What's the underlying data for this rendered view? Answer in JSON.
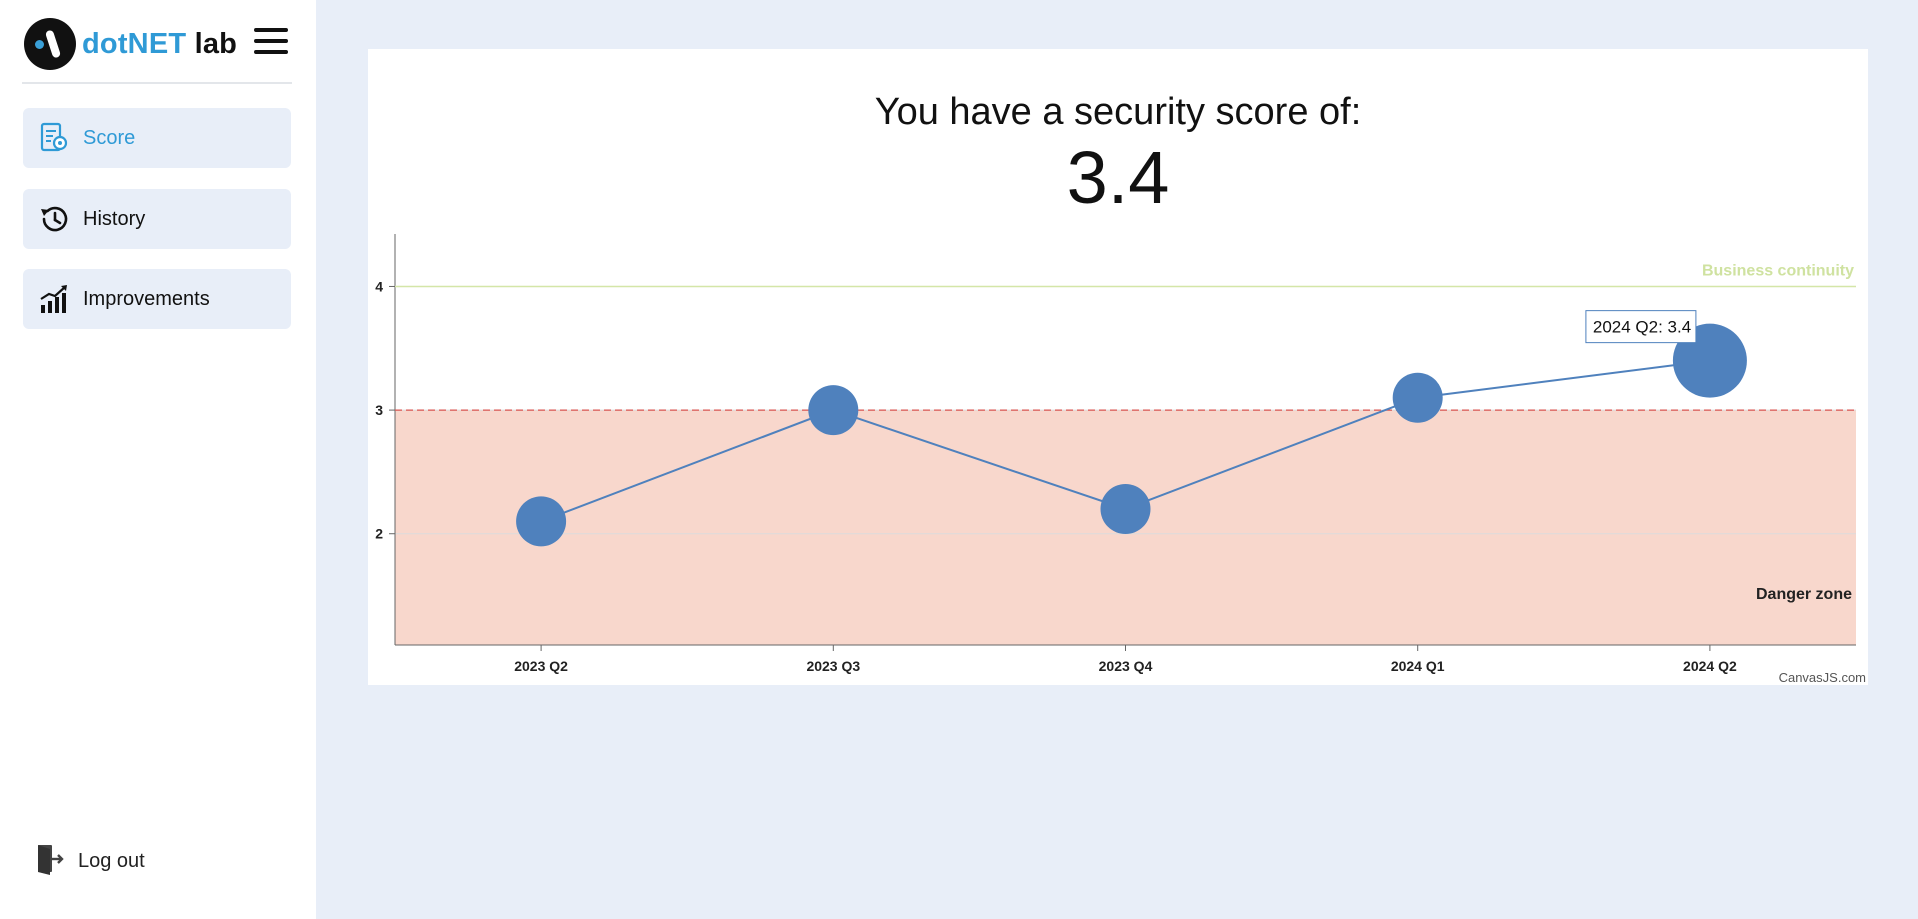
{
  "brand": {
    "name_part1": "dotNET",
    "name_part2": "lab"
  },
  "sidebar": {
    "items": [
      {
        "label": "Score",
        "icon": "score-report-icon",
        "active": true
      },
      {
        "label": "History",
        "icon": "history-icon",
        "active": false
      },
      {
        "label": "Improvements",
        "icon": "improvements-chart-icon",
        "active": false
      }
    ],
    "logout_label": "Log out"
  },
  "score": {
    "title": "You have a security score of:",
    "value": "3.4"
  },
  "colors": {
    "accent": "#2f9ad6",
    "line": "#4f81bd",
    "danger_fill": "#f8d7cc",
    "danger_line": "#d9534f",
    "continuity_line": "#d4e6a8"
  },
  "chart_data": {
    "type": "line",
    "categories": [
      "2023 Q2",
      "2023 Q3",
      "2023 Q4",
      "2024 Q1",
      "2024 Q2"
    ],
    "values": [
      2.1,
      3.0,
      2.2,
      3.1,
      3.4
    ],
    "yticks": [
      2,
      3,
      4
    ],
    "ylim": [
      1.1,
      4.4
    ],
    "strip_lines": [
      {
        "value": 4,
        "label": "Business continuity"
      },
      {
        "value": 3,
        "label": "Danger zone"
      }
    ],
    "tooltip": "2024 Q2: 3.4",
    "credit": "CanvasJS.com"
  }
}
